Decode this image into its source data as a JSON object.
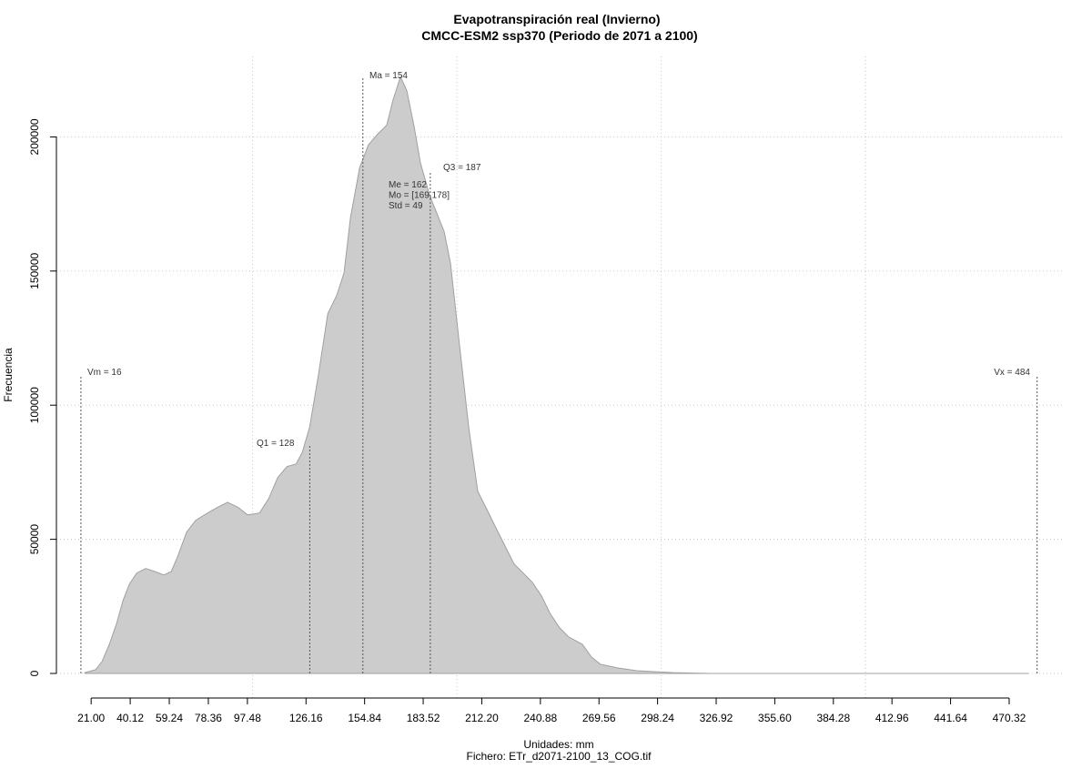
{
  "chart_data": {
    "type": "area",
    "title": "Evapotranspiración real (Invierno)",
    "subtitle": "CMCC-ESM2 ssp370 (Periodo de 2071 a 2100)",
    "x_label": "Unidades: mm",
    "x_label_2": "Fichero: ETr_d2071-2100_13_COG.tif",
    "y_label": "Frecuencia",
    "color": "#cccccc",
    "line_color": "#a0a0a0",
    "grid": true,
    "xlim": [
      4,
      497.5
    ],
    "ylim": [
      -9500,
      230000
    ],
    "xgrid": [
      100,
      200,
      300,
      400
    ],
    "yticks": [
      0,
      50000,
      100000,
      150000,
      200000
    ],
    "xticks": [
      {
        "value": 21,
        "label": "21.00"
      },
      {
        "value": 40.12,
        "label": "40.12"
      },
      {
        "value": 59.24,
        "label": "59.24"
      },
      {
        "value": 78.36,
        "label": "78.36"
      },
      {
        "value": 97.48,
        "label": "97.48"
      },
      {
        "value": 126.16,
        "label": "126.16"
      },
      {
        "value": 154.84,
        "label": "154.84"
      },
      {
        "value": 183.52,
        "label": "183.52"
      },
      {
        "value": 212.2,
        "label": "212.20"
      },
      {
        "value": 240.88,
        "label": "240.88"
      },
      {
        "value": 269.56,
        "label": "269.56"
      },
      {
        "value": 298.24,
        "label": "298.24"
      },
      {
        "value": 326.92,
        "label": "326.92"
      },
      {
        "value": 355.6,
        "label": "355.60"
      },
      {
        "value": 384.28,
        "label": "384.28"
      },
      {
        "value": 412.96,
        "label": "412.96"
      },
      {
        "value": 441.64,
        "label": "441.64"
      },
      {
        "value": 470.32,
        "label": "470.32"
      }
    ],
    "x": [
      17.9,
      23.2,
      26.3,
      29.9,
      33.5,
      36.6,
      39.7,
      43.3,
      47.7,
      52.2,
      56.6,
      60.2,
      63.3,
      67.7,
      72.2,
      78.0,
      83.3,
      87.8,
      93.1,
      97.6,
      103.4,
      107.9,
      112.3,
      116.8,
      121.3,
      124.4,
      127.9,
      132.4,
      136.8,
      141.2,
      144.8,
      147.9,
      152.4,
      156.7,
      161.2,
      165.7,
      168.8,
      172.4,
      175.5,
      179.1,
      182.2,
      186.6,
      190.2,
      193.8,
      196.9,
      201.3,
      205.8,
      210.2,
      214.7,
      219.1,
      223.6,
      228.0,
      232.5,
      236.9,
      241.4,
      245.8,
      250.3,
      254.7,
      261.4,
      265.9,
      270.3,
      279.2,
      288.1,
      305.9,
      323.8,
      479.6
    ],
    "values": [
      300,
      1400,
      4400,
      10900,
      18700,
      27200,
      33300,
      37400,
      39100,
      38000,
      36700,
      38000,
      43500,
      52600,
      57100,
      59800,
      62100,
      63800,
      61800,
      59100,
      59800,
      65200,
      73000,
      77100,
      78100,
      82500,
      91700,
      112100,
      134100,
      140900,
      149400,
      169800,
      188500,
      197000,
      201000,
      204400,
      213900,
      222400,
      217300,
      203800,
      190200,
      178300,
      171500,
      164700,
      152800,
      122300,
      91700,
      67900,
      61100,
      54300,
      47500,
      40800,
      37400,
      34000,
      28900,
      22100,
      17000,
      13600,
      10900,
      6100,
      3400,
      2000,
      1000,
      300,
      0,
      0
    ],
    "markers": [
      {
        "label": "Vm = 16",
        "value": 16
      },
      {
        "label": "Q1 = 128",
        "value": 128
      },
      {
        "label": "Ma = 154",
        "value": 154
      },
      {
        "label": "Q3 = 187",
        "value": 187
      },
      {
        "label": "Vx = 484",
        "value": 484
      }
    ],
    "stats": [
      "Me = 162",
      "Mo = [169,178]",
      "Std = 49"
    ]
  }
}
